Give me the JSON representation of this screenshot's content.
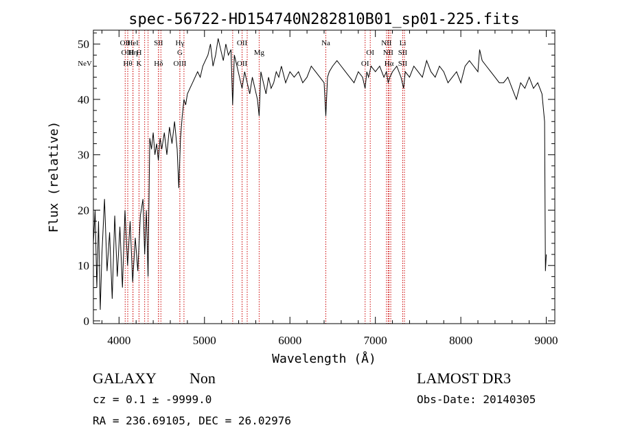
{
  "chart_data": {
    "type": "line",
    "title": "spec-56722-HD154740N282810B01_sp01-225.fits",
    "xlabel": "Wavelength (Å)",
    "ylabel": "Flux (relative)",
    "xlim": [
      3700,
      9100
    ],
    "ylim": [
      -0.5,
      52.5
    ],
    "xticks": [
      4000,
      5000,
      6000,
      7000,
      8000,
      9000
    ],
    "yticks": [
      0,
      10,
      20,
      30,
      40,
      50
    ],
    "grid": false,
    "legend": "none",
    "series": [
      {
        "x": [
          3700,
          3720,
          3740,
          3760,
          3780,
          3800,
          3830,
          3860,
          3890,
          3920,
          3950,
          3980,
          4010,
          4040,
          4070,
          4100,
          4130,
          4160,
          4190,
          4220,
          4250,
          4280,
          4300,
          4320,
          4340,
          4360,
          4380,
          4400,
          4420,
          4440,
          4460,
          4480,
          4500,
          4530,
          4560,
          4590,
          4620,
          4650,
          4680,
          4700,
          4720,
          4740,
          4760,
          4780,
          4800,
          4830,
          4860,
          4890,
          4920,
          4950,
          4980,
          5010,
          5040,
          5070,
          5100,
          5130,
          5160,
          5190,
          5220,
          5250,
          5280,
          5310,
          5330,
          5350,
          5380,
          5410,
          5440,
          5470,
          5500,
          5530,
          5560,
          5590,
          5620,
          5640,
          5660,
          5690,
          5720,
          5750,
          5780,
          5810,
          5840,
          5870,
          5900,
          5950,
          6000,
          6050,
          6100,
          6150,
          6200,
          6250,
          6300,
          6350,
          6400,
          6420,
          6440,
          6460,
          6500,
          6550,
          6600,
          6650,
          6700,
          6750,
          6800,
          6850,
          6880,
          6900,
          6920,
          6950,
          7000,
          7050,
          7100,
          7130,
          7150,
          7170,
          7200,
          7250,
          7300,
          7330,
          7350,
          7400,
          7450,
          7500,
          7550,
          7600,
          7650,
          7700,
          7750,
          7800,
          7850,
          7900,
          7950,
          8000,
          8050,
          8100,
          8150,
          8200,
          8220,
          8250,
          8300,
          8350,
          8400,
          8450,
          8500,
          8550,
          8600,
          8650,
          8700,
          8750,
          8800,
          8850,
          8900,
          8950,
          8980,
          8990,
          9000
        ],
        "y": [
          14,
          20,
          6,
          18,
          2,
          12,
          22,
          9,
          16,
          4,
          19,
          8,
          17,
          6,
          20,
          10,
          18,
          7,
          15,
          9,
          19,
          22,
          12,
          20,
          8,
          33,
          31,
          34,
          30,
          32,
          29,
          33,
          31,
          34,
          30,
          35,
          32,
          36,
          31,
          24,
          33,
          37,
          40,
          39,
          41,
          42,
          43,
          44,
          45,
          44,
          46,
          47,
          48,
          50,
          46,
          48,
          51,
          49,
          47,
          50,
          48,
          49,
          39,
          48,
          46,
          44,
          42,
          45,
          43,
          41,
          44,
          42,
          40,
          37,
          45,
          43,
          41,
          44,
          42,
          43,
          45,
          44,
          46,
          43,
          45,
          44,
          45,
          43,
          44,
          46,
          45,
          44,
          43,
          37,
          44,
          45,
          46,
          47,
          46,
          45,
          44,
          43,
          45,
          44,
          42,
          45,
          44,
          46,
          45,
          46,
          44,
          45,
          43,
          44,
          45,
          46,
          44,
          42,
          45,
          44,
          46,
          45,
          44,
          47,
          45,
          44,
          46,
          45,
          43,
          44,
          45,
          43,
          46,
          47,
          46,
          45,
          49,
          47,
          46,
          45,
          44,
          43,
          43,
          44,
          42,
          40,
          43,
          42,
          44,
          42,
          43,
          41,
          36,
          9,
          12
        ]
      }
    ],
    "line_markers": [
      {
        "x": 3426,
        "label": "NeV",
        "row": 3
      },
      {
        "x": 4072,
        "label": "OII",
        "row": 1
      },
      {
        "x": 4102,
        "label": "OIII",
        "row": 2
      },
      {
        "x": 4102,
        "label": "Hθ",
        "row": 3
      },
      {
        "x": 4163,
        "label": "HeI",
        "row": 1
      },
      {
        "x": 4163,
        "label": "Hη",
        "row": 2
      },
      {
        "x": 4234,
        "label": "H",
        "row": 2
      },
      {
        "x": 4234,
        "label": "K",
        "row": 3
      },
      {
        "x": 4300,
        "label": "",
        "row": 0
      },
      {
        "x": 4340,
        "label": "",
        "row": 0
      },
      {
        "x": 4462,
        "label": "SII",
        "row": 1
      },
      {
        "x": 4462,
        "label": "Hδ",
        "row": 3
      },
      {
        "x": 4490,
        "label": "",
        "row": 0
      },
      {
        "x": 4712,
        "label": "Hγ",
        "row": 1
      },
      {
        "x": 4712,
        "label": "G",
        "row": 2
      },
      {
        "x": 4712,
        "label": "OIII",
        "row": 3
      },
      {
        "x": 4760,
        "label": "",
        "row": 0
      },
      {
        "x": 5330,
        "label": "",
        "row": 0
      },
      {
        "x": 5440,
        "label": "OII",
        "row": 1
      },
      {
        "x": 5440,
        "label": "OII",
        "row": 3
      },
      {
        "x": 5500,
        "label": "",
        "row": 0
      },
      {
        "x": 5640,
        "label": "Mg",
        "row": 2
      },
      {
        "x": 6420,
        "label": "Na",
        "row": 1
      },
      {
        "x": 6880,
        "label": "OI",
        "row": 3
      },
      {
        "x": 6940,
        "label": "OI",
        "row": 2
      },
      {
        "x": 7130,
        "label": "NII",
        "row": 1
      },
      {
        "x": 7150,
        "label": "NII",
        "row": 2
      },
      {
        "x": 7160,
        "label": "Hα",
        "row": 3
      },
      {
        "x": 7180,
        "label": "",
        "row": 0
      },
      {
        "x": 7320,
        "label": "Li",
        "row": 1
      },
      {
        "x": 7320,
        "label": "SII",
        "row": 2
      },
      {
        "x": 7320,
        "label": "SII",
        "row": 3
      },
      {
        "x": 7340,
        "label": "",
        "row": 0
      }
    ],
    "line_color": "#000000",
    "marker_color": "#cc0000"
  },
  "info": {
    "class": "GALAXY",
    "subclass": "Non",
    "cz": "cz = 0.1 ± -9999.0",
    "radec": "RA = 236.69105, DEC =  26.02976",
    "survey": "LAMOST DR3",
    "obsdate": "Obs-Date: 20140305"
  }
}
